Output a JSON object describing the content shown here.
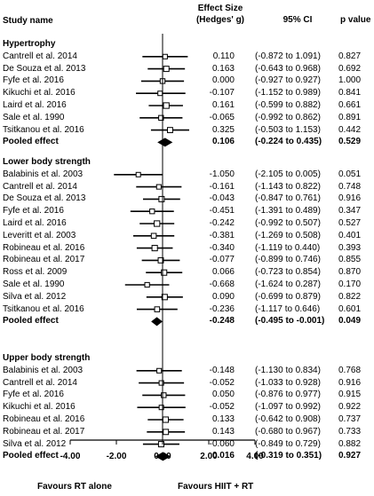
{
  "header": {
    "study": "Study name",
    "effect_size": "Effect Size",
    "effect_metric": "(Hedges' g)",
    "ci": "95% CI",
    "p": "p value"
  },
  "chart_data": {
    "type": "forest",
    "xlim": [
      -4,
      4
    ],
    "ticks": [
      -4,
      -2,
      0,
      2,
      4
    ],
    "tick_labels": [
      "-4.00",
      "-2.00",
      "0.00",
      "2.00",
      "4.00"
    ],
    "favours_left": "Favours RT alone",
    "favours_right": "Favours HIIT + RT",
    "groups": [
      {
        "title": "Hypertrophy",
        "studies": [
          {
            "name": "Cantrell et al. 2014",
            "g": 0.11,
            "lo": -0.872,
            "hi": 1.091,
            "es": "0.110",
            "ci": "(-0.872 to 1.091)",
            "p": "0.827"
          },
          {
            "name": "De Souza et al. 2013",
            "g": 0.163,
            "lo": -0.643,
            "hi": 0.968,
            "es": "0.163",
            "ci": "(-0.643 to 0.968)",
            "p": "0.692"
          },
          {
            "name": "Fyfe et al. 2016",
            "g": 0.0,
            "lo": -0.927,
            "hi": 0.927,
            "es": "0.000",
            "ci": "(-0.927 to 0.927)",
            "p": "1.000"
          },
          {
            "name": "Kikuchi et al. 2016",
            "g": -0.107,
            "lo": -1.152,
            "hi": 0.989,
            "es": "-0.107",
            "ci": "(-1.152 to 0.989)",
            "p": "0.841"
          },
          {
            "name": "Laird et al. 2016",
            "g": 0.161,
            "lo": -0.599,
            "hi": 0.882,
            "es": "0.161",
            "ci": "(-0.599 to 0.882)",
            "p": "0.661"
          },
          {
            "name": "Sale et al. 1990",
            "g": -0.065,
            "lo": -0.992,
            "hi": 0.862,
            "es": "-0.065",
            "ci": "(-0.992 to 0.862)",
            "p": "0.891"
          },
          {
            "name": "Tsitkanou et al. 2016",
            "g": 0.325,
            "lo": -0.503,
            "hi": 1.153,
            "es": "0.325",
            "ci": "(-0.503 to 1.153)",
            "p": "0.442"
          }
        ],
        "pooled": {
          "label": "Pooled effect",
          "g": 0.106,
          "lo": -0.224,
          "hi": 0.435,
          "es": "0.106",
          "ci": "(-0.224 to 0.435)",
          "p": "0.529"
        }
      },
      {
        "title": "Lower body strength",
        "studies": [
          {
            "name": "Balabinis et al. 2003",
            "g": -1.05,
            "lo": -2.105,
            "hi": 0.005,
            "es": "-1.050",
            "ci": "(-2.105 to 0.005)",
            "p": "0.051"
          },
          {
            "name": "Cantrell et al. 2014",
            "g": -0.161,
            "lo": -1.143,
            "hi": 0.822,
            "es": "-0.161",
            "ci": "(-1.143 to 0.822)",
            "p": "0.748"
          },
          {
            "name": "De Souza et al. 2013",
            "g": -0.043,
            "lo": -0.847,
            "hi": 0.761,
            "es": "-0.043",
            "ci": "(-0.847 to 0.761)",
            "p": "0.916"
          },
          {
            "name": "Fyfe et al. 2016",
            "g": -0.451,
            "lo": -1.391,
            "hi": 0.489,
            "es": "-0.451",
            "ci": "(-1.391 to 0.489)",
            "p": "0.347"
          },
          {
            "name": "Laird et al. 2016",
            "g": -0.242,
            "lo": -0.992,
            "hi": 0.507,
            "es": "-0.242",
            "ci": "(-0.992 to 0.507)",
            "p": "0.527"
          },
          {
            "name": "Leveritt et al. 2003",
            "g": -0.381,
            "lo": -1.269,
            "hi": 0.508,
            "es": "-0.381",
            "ci": "(-1.269 to 0.508)",
            "p": "0.401"
          },
          {
            "name": "Robineau et al. 2016",
            "g": -0.34,
            "lo": -1.119,
            "hi": 0.44,
            "es": "-0.340",
            "ci": "(-1.119 to 0.440)",
            "p": "0.393"
          },
          {
            "name": "Robineau et al. 2017",
            "g": -0.077,
            "lo": -0.899,
            "hi": 0.746,
            "es": "-0.077",
            "ci": "(-0.899 to 0.746)",
            "p": "0.855"
          },
          {
            "name": "Ross et al. 2009",
            "g": 0.066,
            "lo": -0.723,
            "hi": 0.854,
            "es": "0.066",
            "ci": "(-0.723 to 0.854)",
            "p": "0.870"
          },
          {
            "name": "Sale et al. 1990",
            "g": -0.668,
            "lo": -1.624,
            "hi": 0.287,
            "es": "-0.668",
            "ci": "(-1.624 to 0.287)",
            "p": "0.170"
          },
          {
            "name": "Silva et al. 2012",
            "g": 0.09,
            "lo": -0.699,
            "hi": 0.879,
            "es": "0.090",
            "ci": "(-0.699 to 0.879)",
            "p": "0.822"
          },
          {
            "name": "Tsitkanou et al. 2016",
            "g": -0.236,
            "lo": -1.117,
            "hi": 0.646,
            "es": "-0.236",
            "ci": "(-1.117 to 0.646)",
            "p": "0.601"
          }
        ],
        "pooled": {
          "label": "Pooled effect",
          "g": -0.248,
          "lo": -0.495,
          "hi": -0.001,
          "es": "-0.248",
          "ci": "(-0.495 to -0.001)",
          "p": "0.049"
        }
      },
      {
        "title": "Upper body strength",
        "studies": [
          {
            "name": "Balabinis et al. 2003",
            "g": -0.148,
            "lo": -1.13,
            "hi": 0.834,
            "es": "-0.148",
            "ci": "(-1.130 to 0.834)",
            "p": "0.768"
          },
          {
            "name": "Cantrell et al. 2014",
            "g": -0.052,
            "lo": -1.033,
            "hi": 0.928,
            "es": "-0.052",
            "ci": "(-1.033 to 0.928)",
            "p": "0.916"
          },
          {
            "name": "Fyfe et al. 2016",
            "g": 0.05,
            "lo": -0.876,
            "hi": 0.977,
            "es": "0.050",
            "ci": "(-0.876 to 0.977)",
            "p": "0.915"
          },
          {
            "name": "Kikuchi et al. 2016",
            "g": -0.052,
            "lo": -1.097,
            "hi": 0.992,
            "es": "-0.052",
            "ci": "(-1.097 to 0.992)",
            "p": "0.922"
          },
          {
            "name": "Robineau et al. 2016",
            "g": 0.133,
            "lo": -0.642,
            "hi": 0.908,
            "es": "0.133",
            "ci": "(-0.642 to 0.908)",
            "p": "0.737"
          },
          {
            "name": "Robineau et al. 2017",
            "g": 0.143,
            "lo": -0.68,
            "hi": 0.967,
            "es": "0.143",
            "ci": "(-0.680 to 0.967)",
            "p": "0.733"
          },
          {
            "name": "Silva et al. 2012",
            "g": -0.06,
            "lo": -0.849,
            "hi": 0.729,
            "es": "-0.060",
            "ci": "(-0.849 to 0.729)",
            "p": "0.882"
          }
        ],
        "pooled": {
          "label": "Pooled effect",
          "g": 0.016,
          "lo": -0.319,
          "hi": 0.351,
          "es": "0.016",
          "ci": "(-0.319 to 0.351)",
          "p": "0.927"
        }
      }
    ]
  }
}
